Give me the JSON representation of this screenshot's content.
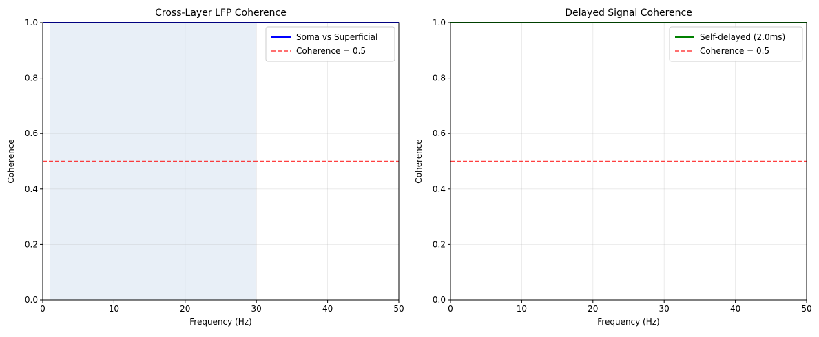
{
  "chart_data": [
    {
      "type": "line",
      "title": "Cross-Layer LFP Coherence",
      "xlabel": "Frequency (Hz)",
      "ylabel": "Coherence",
      "xlim": [
        0,
        50
      ],
      "ylim": [
        0,
        1
      ],
      "xticks": [
        0,
        10,
        20,
        30,
        40,
        50
      ],
      "yticks": [
        0.0,
        0.2,
        0.4,
        0.6,
        0.8,
        1.0
      ],
      "xtick_labels": [
        "0",
        "10",
        "20",
        "30",
        "40",
        "50"
      ],
      "ytick_labels": [
        "0.0",
        "0.2",
        "0.4",
        "0.6",
        "0.8",
        "1.0"
      ],
      "grid": true,
      "legend_position": "top-right",
      "shaded_region": {
        "x": [
          1,
          30
        ],
        "color": "#dce6f2"
      },
      "series": [
        {
          "name": "Soma vs Superficial",
          "x": [
            0,
            50
          ],
          "y": [
            1.0,
            1.0
          ],
          "color": "#0000ff",
          "style": "solid"
        },
        {
          "name": "Coherence = 0.5",
          "x": [
            0,
            50
          ],
          "y": [
            0.5,
            0.5
          ],
          "color": "#ff0000",
          "style": "dashed"
        }
      ]
    },
    {
      "type": "line",
      "title": "Delayed Signal Coherence",
      "xlabel": "Frequency (Hz)",
      "ylabel": "Coherence",
      "xlim": [
        0,
        50
      ],
      "ylim": [
        0,
        1
      ],
      "xticks": [
        0,
        10,
        20,
        30,
        40,
        50
      ],
      "yticks": [
        0.0,
        0.2,
        0.4,
        0.6,
        0.8,
        1.0
      ],
      "xtick_labels": [
        "0",
        "10",
        "20",
        "30",
        "40",
        "50"
      ],
      "ytick_labels": [
        "0.0",
        "0.2",
        "0.4",
        "0.6",
        "0.8",
        "1.0"
      ],
      "grid": true,
      "legend_position": "top-right",
      "series": [
        {
          "name": "Self-delayed (2.0ms)",
          "x": [
            0,
            50
          ],
          "y": [
            1.0,
            1.0
          ],
          "color": "#008000",
          "style": "solid"
        },
        {
          "name": "Coherence = 0.5",
          "x": [
            0,
            50
          ],
          "y": [
            0.5,
            0.5
          ],
          "color": "#ff0000",
          "style": "dashed"
        }
      ]
    }
  ]
}
